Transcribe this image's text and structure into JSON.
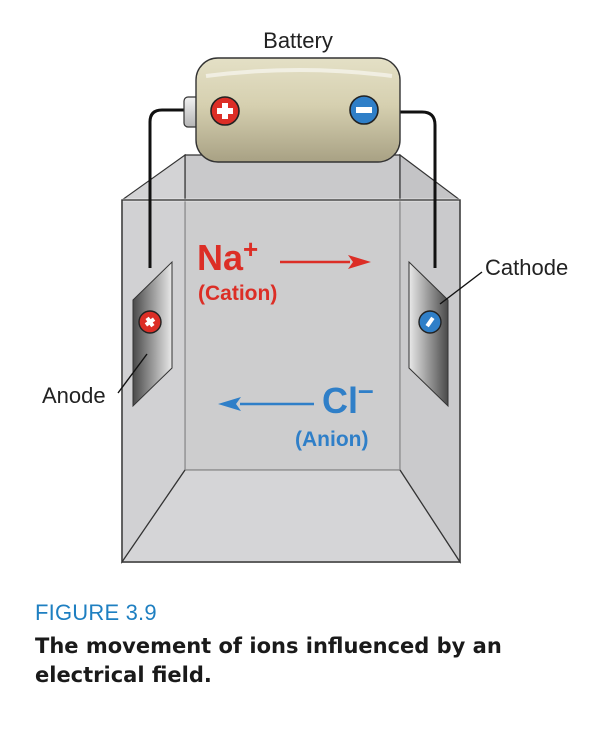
{
  "diagram": {
    "battery_label": "Battery",
    "anode_label": "Anode",
    "cathode_label": "Cathode",
    "cation": {
      "symbol": "Na",
      "charge": "+",
      "name": "(Cation)"
    },
    "anion": {
      "symbol": "Cl",
      "charge": "–",
      "name": "(Anion)"
    },
    "colors": {
      "cation": "#dc2e26",
      "anion": "#2f7fc8",
      "tank": "#cfcfd1",
      "battery": "#cdc7a6"
    }
  },
  "caption": {
    "figure_number": "FIGURE 3.9",
    "title": "The movement of ions influenced by an electrical field."
  }
}
